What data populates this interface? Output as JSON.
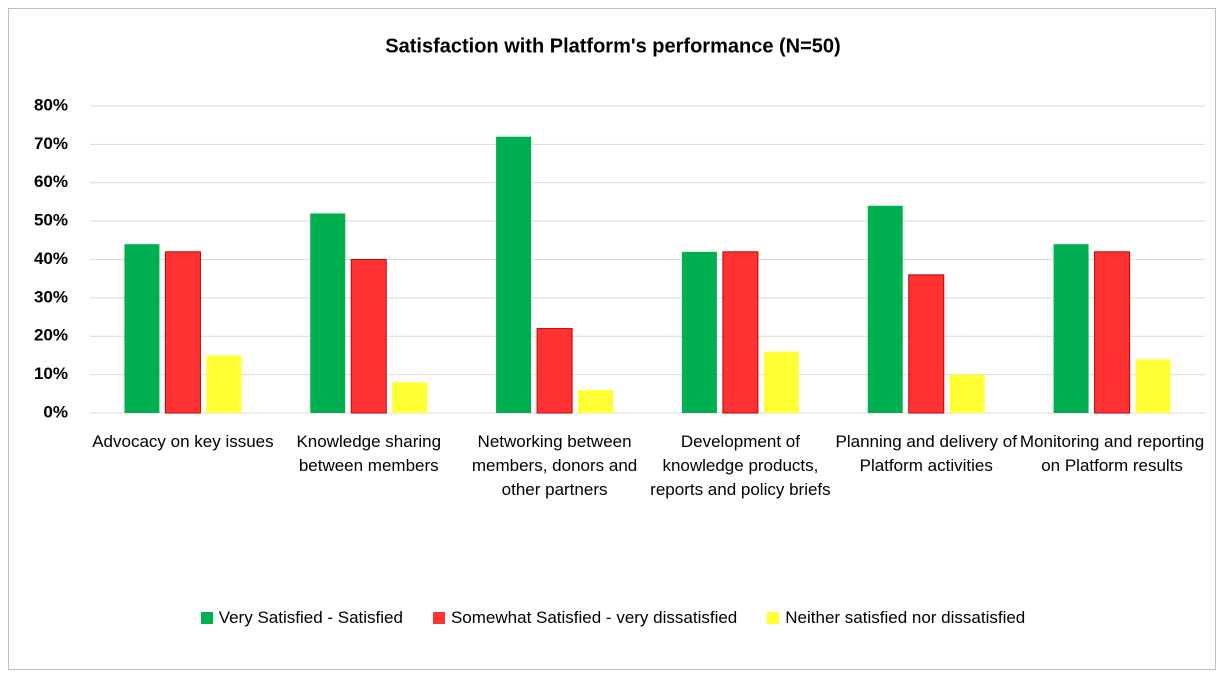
{
  "chart_data": {
    "type": "bar",
    "title": "Satisfaction with Platform's performance (N=50)",
    "categories": [
      "Advocacy on key issues",
      "Knowledge sharing between members",
      "Networking between members, donors and other partners",
      "Development of knowledge products, reports and policy briefs",
      "Planning and delivery of Platform activities",
      "Monitoring and reporting on Platform results"
    ],
    "series": [
      {
        "name": "Very Satisfied - Satisfied",
        "color": "#00b050",
        "values": [
          44,
          52,
          72,
          42,
          54,
          44
        ]
      },
      {
        "name": "Somewhat Satisfied - very dissatisfied",
        "color": "#ff3333",
        "values": [
          42,
          40,
          22,
          42,
          36,
          42
        ]
      },
      {
        "name": "Neither satisfied nor dissatisfied",
        "color": "#ffff33",
        "values": [
          15,
          8,
          6,
          16,
          10,
          14
        ]
      }
    ],
    "ylim": [
      0,
      80
    ],
    "yticks": [
      {
        "value": 0,
        "label": "0%"
      },
      {
        "value": 10,
        "label": "10%"
      },
      {
        "value": 20,
        "label": "20%"
      },
      {
        "value": 30,
        "label": "30%"
      },
      {
        "value": 40,
        "label": "40%"
      },
      {
        "value": 50,
        "label": "50%"
      },
      {
        "value": 60,
        "label": "60%"
      },
      {
        "value": 70,
        "label": "70%"
      },
      {
        "value": 80,
        "label": "80%"
      }
    ],
    "grid": true,
    "legend": "bottom"
  }
}
